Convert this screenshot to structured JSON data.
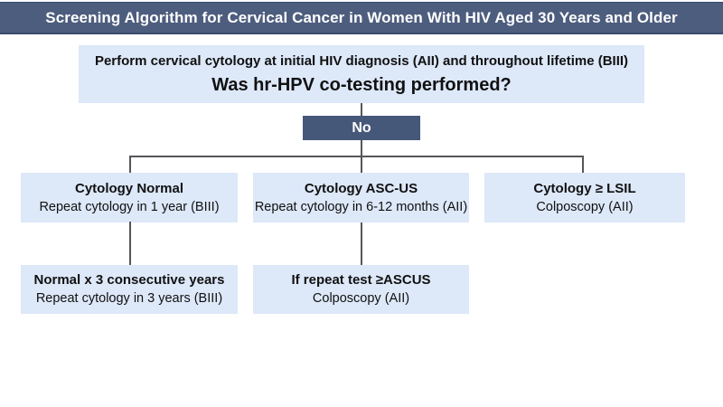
{
  "colors": {
    "header_bg": "#4d5d7e",
    "header_border": "#3a4b6d",
    "box_bg": "#dde8f9",
    "no_bg": "#46587a",
    "line": "#55565a"
  },
  "header": {
    "title": "Screening Algorithm for Cervical Cancer in Women With HIV Aged 30 Years and Older"
  },
  "root_box": {
    "line1": "Perform cervical cytology at initial HIV diagnosis (AII) and throughout lifetime (BIII)",
    "question": "Was hr-HPV co-testing performed?"
  },
  "decision": {
    "label": "No"
  },
  "branches": [
    {
      "title": "Cytology Normal",
      "subtitle": "Repeat cytology in 1 year (BIII)"
    },
    {
      "title": "Cytology ASC-US",
      "subtitle": "Repeat cytology in 6-12 months (AII)"
    },
    {
      "title": "Cytology ≥ LSIL",
      "subtitle": "Colposcopy (AII)"
    }
  ],
  "followups": [
    {
      "title": "Normal x 3 consecutive years",
      "subtitle": "Repeat cytology in 3 years (BIII)"
    },
    {
      "title": "If repeat test ≥ASCUS",
      "subtitle": "Colposcopy (AII)"
    }
  ]
}
